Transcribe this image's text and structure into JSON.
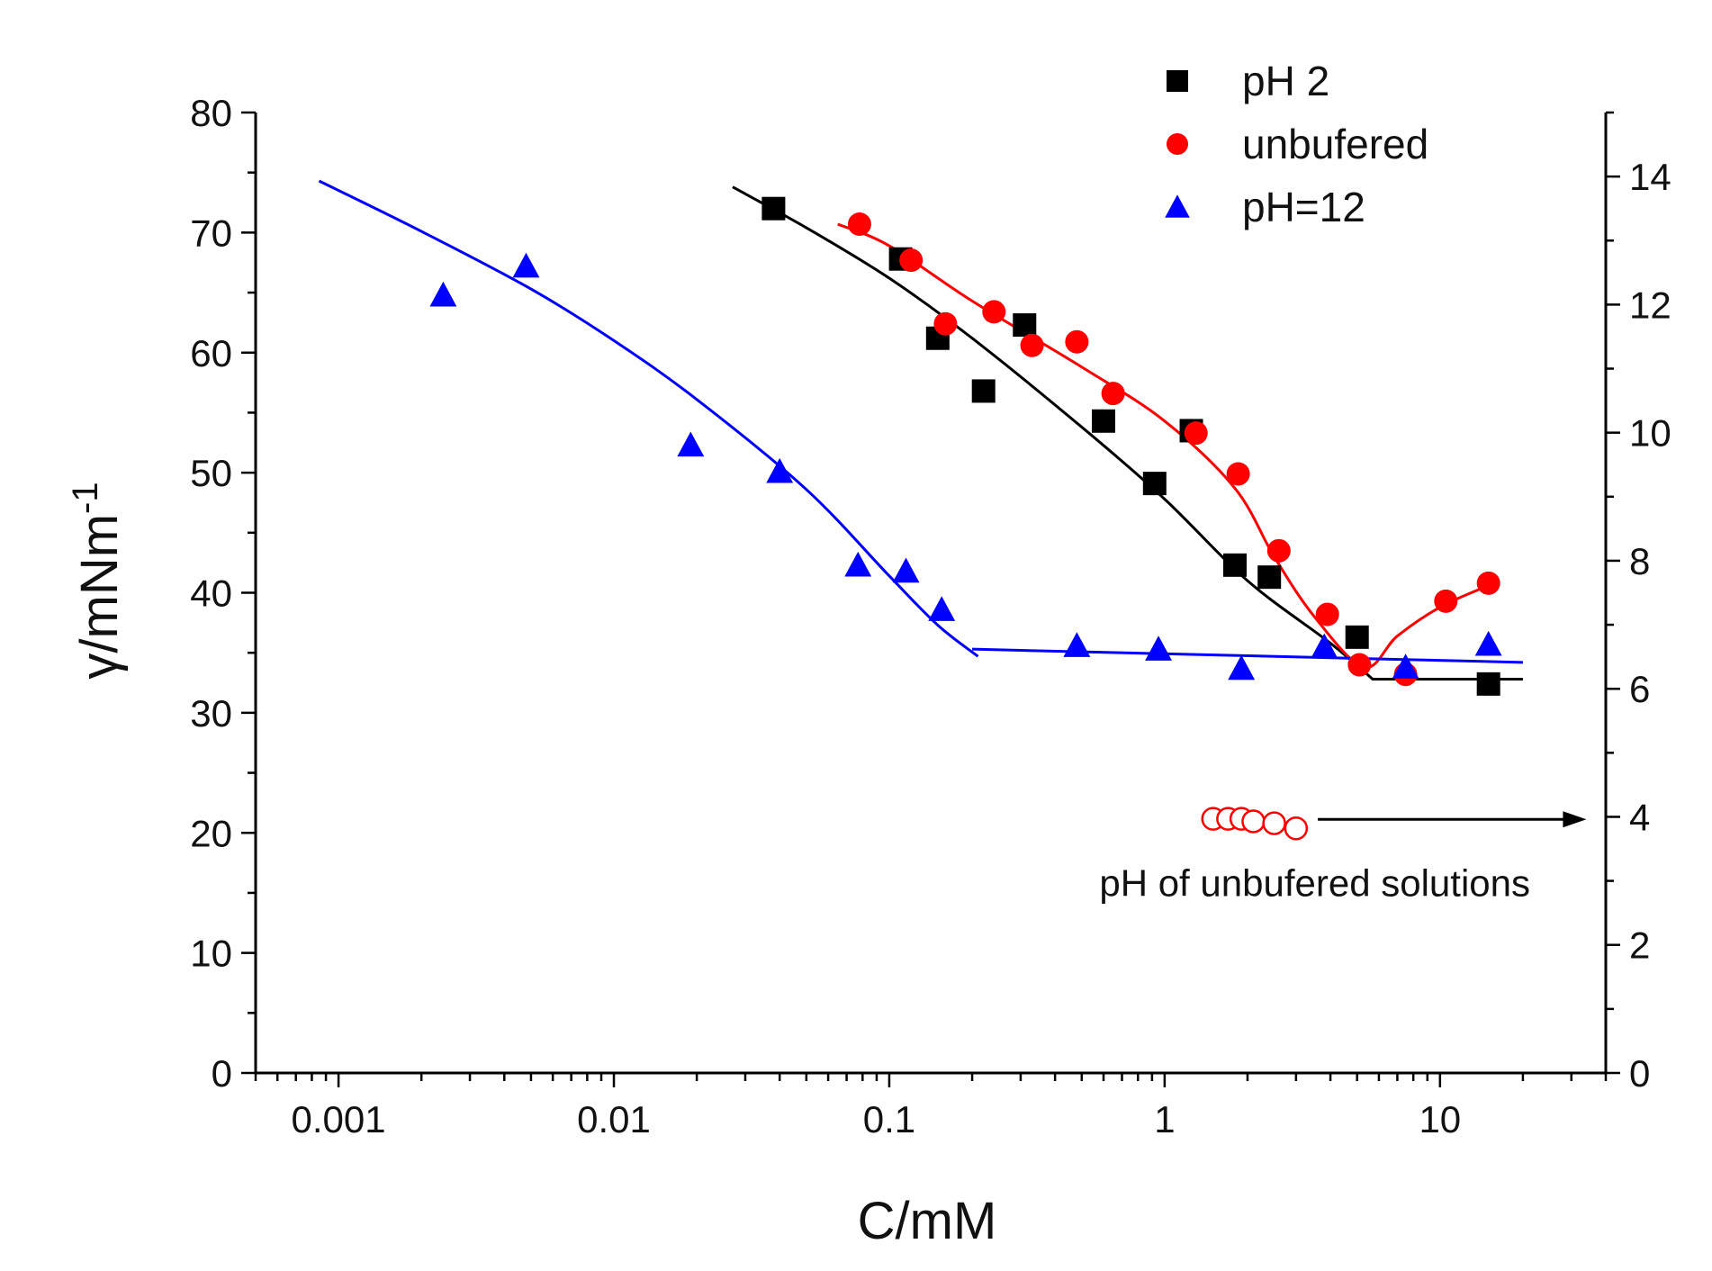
{
  "chart_data": {
    "type": "scatter",
    "title": "",
    "xlabel": "C/mM",
    "ylabel_main": "γ/mNm",
    "ylabel_sup": "-1",
    "xscale": "log",
    "xlim": [
      0.0005,
      40
    ],
    "ylim": [
      0,
      80
    ],
    "y2lim": [
      0,
      15
    ],
    "x_ticks": [
      {
        "v": 0.001,
        "label": "0.001"
      },
      {
        "v": 0.01,
        "label": "0.01"
      },
      {
        "v": 0.1,
        "label": "0.1"
      },
      {
        "v": 1,
        "label": "1"
      },
      {
        "v": 10,
        "label": "10"
      }
    ],
    "y_ticks": [
      {
        "v": 0,
        "label": "0"
      },
      {
        "v": 10,
        "label": "10"
      },
      {
        "v": 20,
        "label": "20"
      },
      {
        "v": 30,
        "label": "30"
      },
      {
        "v": 40,
        "label": "40"
      },
      {
        "v": 50,
        "label": "50"
      },
      {
        "v": 60,
        "label": "60"
      },
      {
        "v": 70,
        "label": "70"
      },
      {
        "v": 80,
        "label": "80"
      }
    ],
    "y2_ticks": [
      {
        "v": 0,
        "label": "0"
      },
      {
        "v": 2,
        "label": "2"
      },
      {
        "v": 4,
        "label": "4"
      },
      {
        "v": 6,
        "label": "6"
      },
      {
        "v": 8,
        "label": "8"
      },
      {
        "v": 10,
        "label": "10"
      },
      {
        "v": 12,
        "label": "12"
      },
      {
        "v": 14,
        "label": "14"
      }
    ],
    "legend_position": "top-right",
    "series": [
      {
        "name": "pH 2",
        "marker": "square",
        "color": "#000000",
        "x": [
          0.038,
          0.11,
          0.15,
          0.22,
          0.31,
          0.6,
          0.92,
          1.25,
          1.8,
          2.4,
          5.0,
          15.0
        ],
        "y": [
          72,
          67.8,
          61.2,
          56.8,
          62.3,
          54.3,
          49.1,
          53.5,
          42.3,
          41.3,
          36.3,
          32.4
        ]
      },
      {
        "name": "unbufered",
        "marker": "circle",
        "color": "#ff0000",
        "x": [
          0.078,
          0.12,
          0.16,
          0.24,
          0.33,
          0.48,
          0.65,
          1.3,
          1.85,
          2.6,
          3.9,
          5.1,
          7.5,
          10.5,
          15.0
        ],
        "y": [
          70.7,
          67.7,
          62.4,
          63.4,
          60.6,
          60.9,
          56.6,
          53.3,
          49.9,
          43.5,
          38.2,
          34.0,
          33.2,
          39.3,
          40.8
        ]
      },
      {
        "name": "pH=12",
        "marker": "triangle",
        "color": "#0000ff",
        "x": [
          0.0024,
          0.0048,
          0.019,
          0.04,
          0.077,
          0.115,
          0.155,
          0.48,
          0.95,
          1.9,
          3.8,
          7.5,
          15.0
        ],
        "y": [
          64.8,
          67.2,
          52.3,
          50.1,
          42.3,
          41.8,
          38.6,
          35.6,
          35.3,
          33.7,
          35.5,
          33.8,
          35.7
        ]
      },
      {
        "name": "pH of unbufered solutions",
        "marker": "open-circle",
        "color": "#ff0000",
        "axis": "right",
        "x": [
          1.5,
          1.7,
          1.9,
          2.1,
          2.5,
          3.0
        ],
        "y": [
          3.97,
          3.97,
          3.97,
          3.93,
          3.9,
          3.82
        ]
      }
    ],
    "fits": [
      {
        "series": "pH 2",
        "color": "#000000",
        "x": [
          0.027,
          0.05,
          0.1,
          0.2,
          0.5,
          1.0,
          2.0,
          4.0,
          5.7,
          20.0
        ],
        "y": [
          73.8,
          70.4,
          66.2,
          61.2,
          53.8,
          47.8,
          41.0,
          35.8,
          32.8,
          32.8
        ]
      },
      {
        "series": "unbufered",
        "color": "#ff0000",
        "x": [
          0.065,
          0.1,
          0.2,
          0.5,
          1.0,
          1.8,
          2.5,
          3.5,
          5.3,
          7.0,
          10.0,
          15.0
        ],
        "y": [
          70.7,
          68.9,
          64.3,
          58.8,
          54.3,
          48.7,
          43.0,
          38.0,
          33.8,
          36.4,
          38.8,
          40.6
        ]
      },
      {
        "series": "pH=12",
        "color": "#0000ff",
        "x": [
          0.00085,
          0.002,
          0.005,
          0.01,
          0.02,
          0.05,
          0.1,
          0.15,
          0.21
        ],
        "y": [
          74.3,
          70.1,
          65.3,
          61.0,
          56.1,
          48.6,
          41.4,
          37.3,
          34.7
        ]
      },
      {
        "series": "pH=12 plateau",
        "color": "#0000ff",
        "x": [
          0.2,
          20.0
        ],
        "y": [
          35.3,
          34.2
        ]
      }
    ],
    "annotation": {
      "text": "pH of unbufered solutions",
      "arrow_from_x": 3.6,
      "arrow_to_x": 34.0,
      "arrow_y2": 3.96
    }
  }
}
